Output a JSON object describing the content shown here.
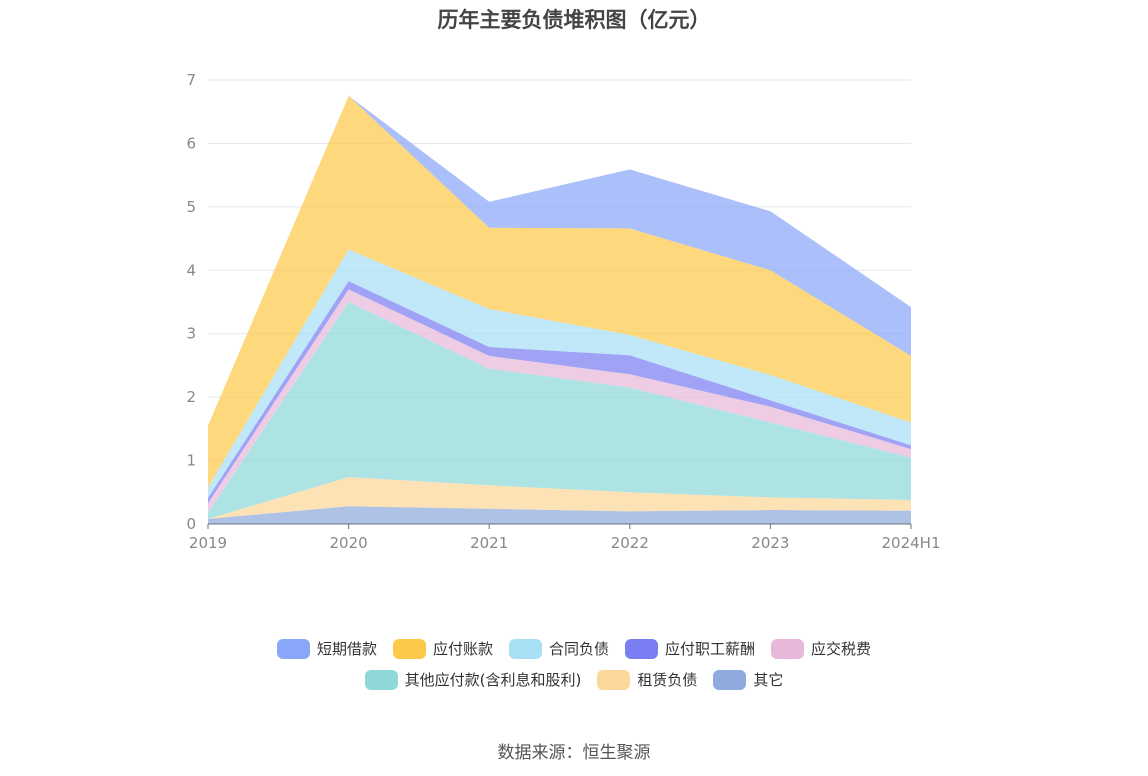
{
  "title": "历年主要负债堆积图（亿元）",
  "source": "数据来源：恒生聚源",
  "chart_data": {
    "type": "area",
    "stacked": true,
    "title": "历年主要负债堆积图（亿元）",
    "categories": [
      "2019",
      "2020",
      "2021",
      "2022",
      "2023",
      "2024H1"
    ],
    "ylim": [
      0,
      7
    ],
    "yticks": [
      0,
      1,
      2,
      3,
      4,
      5,
      6,
      7
    ],
    "grid": true,
    "legend_position": "bottom",
    "series": [
      {
        "name": "其它",
        "color": "#8fabdd",
        "values": [
          0.08,
          0.28,
          0.24,
          0.2,
          0.22,
          0.21
        ]
      },
      {
        "name": "租赁负债",
        "color": "#fcd79a",
        "values": [
          0.0,
          0.46,
          0.37,
          0.3,
          0.2,
          0.17
        ]
      },
      {
        "name": "其他应付款(含利息和股利)",
        "color": "#8ed8d8",
        "values": [
          0.1,
          2.76,
          1.84,
          1.65,
          1.18,
          0.67
        ]
      },
      {
        "name": "应交税费",
        "color": "#e8b8da",
        "values": [
          0.15,
          0.2,
          0.2,
          0.21,
          0.25,
          0.13
        ]
      },
      {
        "name": "应付职工薪酬",
        "color": "#7b7ef2",
        "values": [
          0.08,
          0.13,
          0.14,
          0.3,
          0.1,
          0.06
        ]
      },
      {
        "name": "合同负债",
        "color": "#a8dff5",
        "values": [
          0.17,
          0.5,
          0.6,
          0.32,
          0.4,
          0.36
        ]
      },
      {
        "name": "应付账款",
        "color": "#fdc94a",
        "values": [
          0.97,
          2.42,
          1.28,
          1.68,
          1.65,
          1.05
        ]
      },
      {
        "name": "短期借款",
        "color": "#8aa6f8",
        "values": [
          0.0,
          0.0,
          0.41,
          0.93,
          0.93,
          0.77
        ]
      }
    ]
  },
  "legend_rows": [
    [
      "短期借款",
      "应付账款",
      "合同负债",
      "应付职工薪酬",
      "应交税费"
    ],
    [
      "其他应付款(含利息和股利)",
      "租赁负债",
      "其它"
    ]
  ]
}
